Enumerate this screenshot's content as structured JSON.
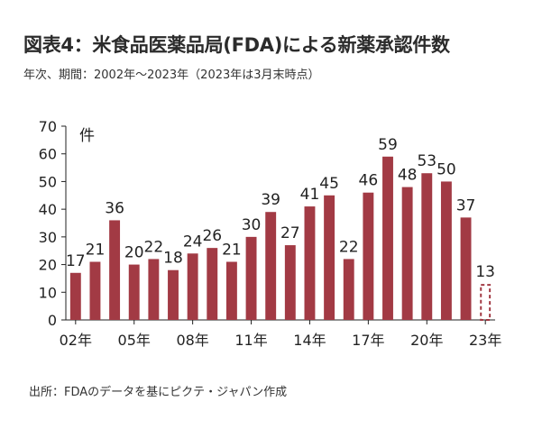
{
  "header": {
    "title": "図表4：米食品医薬品局(FDA)による新薬承認件数",
    "subtitle": "年次、期間：2002年〜2023年（2023年は3月末時点）"
  },
  "footer": {
    "source": "出所：FDAのデータを基にピクテ・ジャパン作成"
  },
  "chart_data": {
    "type": "bar",
    "unit_label": "件",
    "categories": [
      "02年",
      "03年",
      "04年",
      "05年",
      "06年",
      "07年",
      "08年",
      "09年",
      "10年",
      "11年",
      "12年",
      "13年",
      "14年",
      "15年",
      "16年",
      "17年",
      "18年",
      "19年",
      "20年",
      "21年",
      "22年",
      "23年"
    ],
    "values": [
      17,
      21,
      36,
      20,
      22,
      18,
      24,
      26,
      21,
      30,
      39,
      27,
      41,
      45,
      22,
      46,
      59,
      48,
      53,
      50,
      37,
      13
    ],
    "x_tick_labels": [
      "02年",
      "05年",
      "08年",
      "11年",
      "14年",
      "17年",
      "20年",
      "23年"
    ],
    "y_ticks": [
      0,
      10,
      20,
      30,
      40,
      50,
      60,
      70
    ],
    "ylim": [
      0,
      70
    ],
    "bar_color": "#a23a44",
    "partial_last_bar": true,
    "grid": false
  }
}
